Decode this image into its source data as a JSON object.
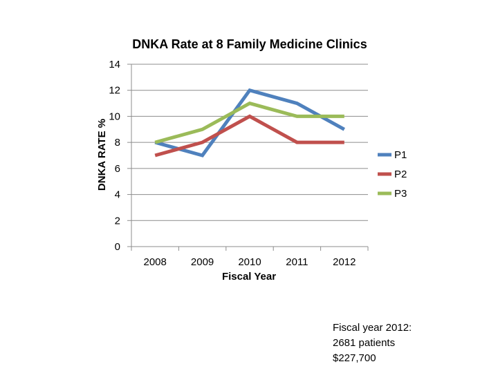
{
  "chart_data": {
    "type": "line",
    "title": "DNKA Rate at 8 Family Medicine  Clinics",
    "xlabel": "Fiscal Year",
    "ylabel": "DNKA  RATE %",
    "categories": [
      "2008",
      "2009",
      "2010",
      "2011",
      "2012"
    ],
    "yticks": [
      "0",
      "2",
      "4",
      "6",
      "8",
      "10",
      "12",
      "14"
    ],
    "ylim": [
      0,
      14
    ],
    "grid": true,
    "legend_position": "right",
    "series": [
      {
        "name": "P1",
        "color": "#4f81bd",
        "values": [
          8,
          7,
          12,
          11,
          9
        ]
      },
      {
        "name": "P2",
        "color": "#c0504d",
        "values": [
          7,
          8,
          10,
          8,
          8
        ]
      },
      {
        "name": "P3",
        "color": "#9bbb59",
        "values": [
          8,
          9,
          11,
          10,
          10
        ]
      }
    ]
  },
  "note": {
    "line1": "Fiscal year 2012:",
    "line2": "2681 patients",
    "line3": "$227,700"
  }
}
